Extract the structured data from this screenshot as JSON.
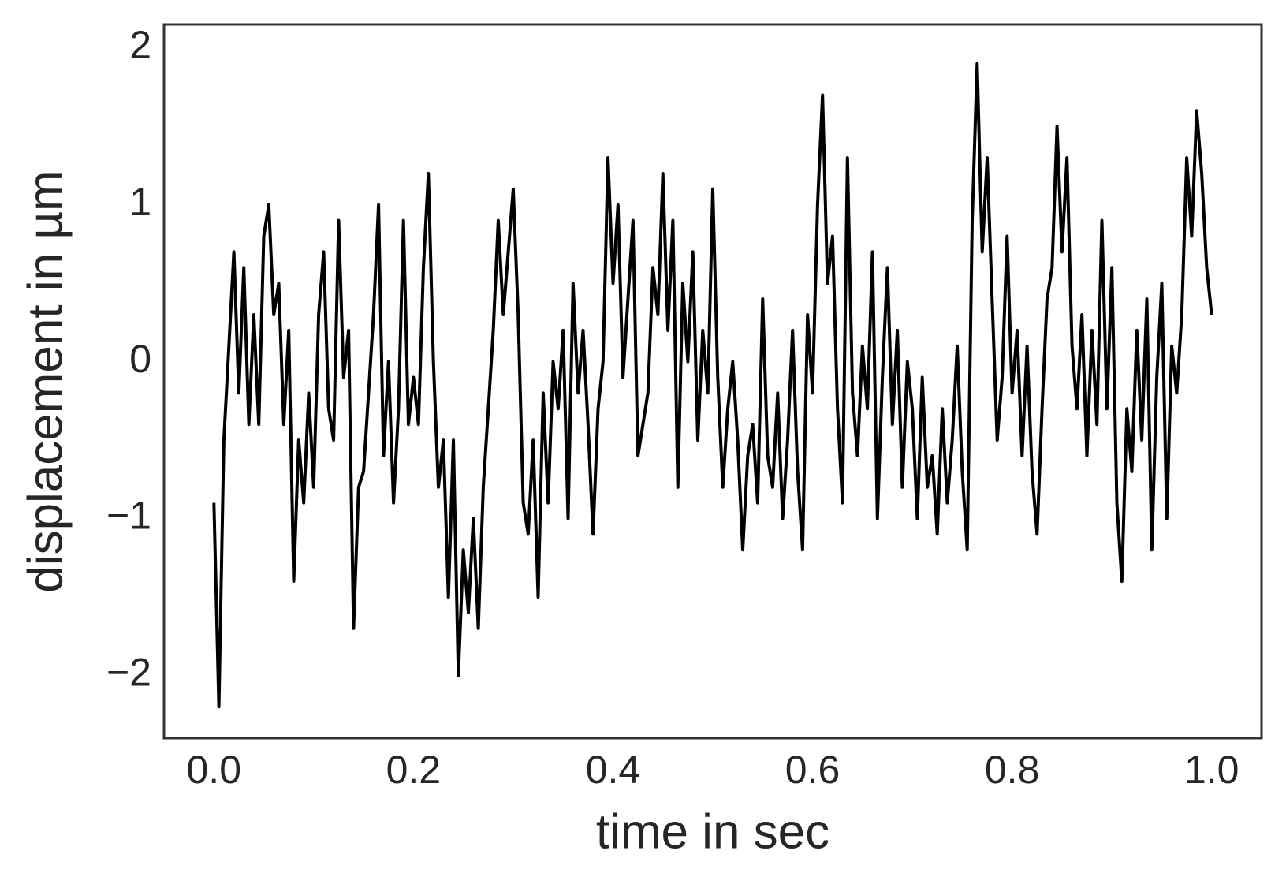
{
  "chart_data": {
    "type": "line",
    "x_label": "time in sec",
    "y_label": "displacement in µm",
    "x": [
      0,
      0.005,
      0.01,
      0.015,
      0.02,
      0.025,
      0.03,
      0.035,
      0.04,
      0.045,
      0.05,
      0.055,
      0.06,
      0.065,
      0.07,
      0.075,
      0.08,
      0.085,
      0.09,
      0.095,
      0.1,
      0.105,
      0.11,
      0.115,
      0.12,
      0.125,
      0.13,
      0.135,
      0.14,
      0.145,
      0.15,
      0.155,
      0.16,
      0.165,
      0.17,
      0.175,
      0.18,
      0.185,
      0.19,
      0.195,
      0.2,
      0.205,
      0.21,
      0.215,
      0.22,
      0.225,
      0.23,
      0.235,
      0.24,
      0.245,
      0.25,
      0.255,
      0.26,
      0.265,
      0.27,
      0.275,
      0.28,
      0.285,
      0.29,
      0.295,
      0.3,
      0.305,
      0.31,
      0.315,
      0.32,
      0.325,
      0.33,
      0.335,
      0.34,
      0.345,
      0.35,
      0.355,
      0.36,
      0.365,
      0.37,
      0.375,
      0.38,
      0.385,
      0.39,
      0.395,
      0.4,
      0.405,
      0.41,
      0.415,
      0.42,
      0.425,
      0.43,
      0.435,
      0.44,
      0.445,
      0.45,
      0.455,
      0.46,
      0.465,
      0.47,
      0.475,
      0.48,
      0.485,
      0.49,
      0.495,
      0.5,
      0.505,
      0.51,
      0.515,
      0.52,
      0.525,
      0.53,
      0.535,
      0.54,
      0.545,
      0.55,
      0.555,
      0.56,
      0.565,
      0.57,
      0.575,
      0.58,
      0.585,
      0.59,
      0.595,
      0.6,
      0.605,
      0.61,
      0.615,
      0.62,
      0.625,
      0.63,
      0.635,
      0.64,
      0.645,
      0.65,
      0.655,
      0.66,
      0.665,
      0.67,
      0.675,
      0.68,
      0.685,
      0.69,
      0.695,
      0.7,
      0.705,
      0.71,
      0.715,
      0.72,
      0.725,
      0.73,
      0.735,
      0.74,
      0.745,
      0.75,
      0.755,
      0.76,
      0.765,
      0.77,
      0.775,
      0.78,
      0.785,
      0.79,
      0.795,
      0.8,
      0.805,
      0.81,
      0.815,
      0.82,
      0.825,
      0.83,
      0.835,
      0.84,
      0.845,
      0.85,
      0.855,
      0.86,
      0.865,
      0.87,
      0.875,
      0.88,
      0.885,
      0.89,
      0.895,
      0.9,
      0.905,
      0.91,
      0.915,
      0.92,
      0.925,
      0.93,
      0.935,
      0.94,
      0.945,
      0.95,
      0.955,
      0.96,
      0.965,
      0.97,
      0.975,
      0.98,
      0.985,
      0.99,
      0.995,
      1
    ],
    "series": [
      {
        "color": "#000000",
        "values": [
          -0.9,
          -2.2,
          -0.5,
          0.1,
          0.7,
          -0.2,
          0.6,
          -0.4,
          0.3,
          -0.4,
          0.8,
          1.0,
          0.3,
          0.5,
          -0.4,
          0.2,
          -1.4,
          -0.5,
          -0.9,
          -0.2,
          -0.8,
          0.3,
          0.7,
          -0.3,
          -0.5,
          0.9,
          -0.1,
          0.2,
          -1.7,
          -0.8,
          -0.7,
          -0.2,
          0.3,
          1.0,
          -0.6,
          0.0,
          -0.9,
          -0.3,
          0.9,
          -0.4,
          -0.1,
          -0.4,
          0.6,
          1.2,
          0.0,
          -0.8,
          -0.5,
          -1.5,
          -0.5,
          -2.0,
          -1.2,
          -1.6,
          -1.0,
          -1.7,
          -0.8,
          -0.3,
          0.2,
          0.9,
          0.3,
          0.7,
          1.1,
          0.3,
          -0.9,
          -1.1,
          -0.5,
          -1.5,
          -0.2,
          -0.9,
          0.0,
          -0.3,
          0.2,
          -1.0,
          0.5,
          -0.2,
          0.2,
          -0.4,
          -1.1,
          -0.3,
          0.0,
          1.3,
          0.5,
          1.0,
          -0.1,
          0.4,
          0.9,
          -0.6,
          -0.4,
          -0.2,
          0.6,
          0.3,
          1.2,
          0.2,
          0.9,
          -0.8,
          0.5,
          0.0,
          0.7,
          -0.5,
          0.2,
          -0.2,
          1.1,
          -0.1,
          -0.8,
          -0.3,
          0.0,
          -0.5,
          -1.2,
          -0.6,
          -0.4,
          -0.9,
          0.4,
          -0.6,
          -0.8,
          -0.2,
          -1.0,
          -0.5,
          0.2,
          -0.7,
          -1.2,
          0.3,
          -0.2,
          1.0,
          1.7,
          0.5,
          0.8,
          -0.3,
          -0.9,
          1.3,
          -0.2,
          -0.6,
          0.1,
          -0.3,
          0.7,
          -1.0,
          -0.1,
          0.6,
          -0.4,
          0.2,
          -0.8,
          0.0,
          -0.3,
          -1.0,
          -0.1,
          -0.8,
          -0.6,
          -1.1,
          -0.3,
          -0.9,
          -0.5,
          0.1,
          -0.7,
          -1.2,
          0.9,
          1.9,
          0.7,
          1.3,
          0.4,
          -0.5,
          -0.1,
          0.8,
          -0.2,
          0.2,
          -0.6,
          0.1,
          -0.7,
          -1.1,
          -0.3,
          0.4,
          0.6,
          1.5,
          0.7,
          1.3,
          0.1,
          -0.3,
          0.3,
          -0.6,
          0.2,
          -0.4,
          0.9,
          -0.3,
          0.6,
          -0.9,
          -1.4,
          -0.3,
          -0.7,
          0.2,
          -0.5,
          0.4,
          -1.2,
          -0.1,
          0.5,
          -1.0,
          0.1,
          -0.2,
          0.3,
          1.3,
          0.8,
          1.6,
          1.2,
          0.6,
          0.3
        ]
      }
    ],
    "xlim": [
      -0.05,
      1.05
    ],
    "ylim": [
      -2.4,
      2.15
    ],
    "xticks": [
      {
        "value": 0,
        "label": "0.0"
      },
      0.2,
      0.4,
      0.6,
      0.8,
      {
        "value": 1,
        "label": "1.0"
      }
    ],
    "yticks": [
      {
        "value": -2,
        "label": "−2"
      },
      {
        "value": -1,
        "label": "−1"
      },
      0,
      1,
      2
    ],
    "grid": false
  }
}
